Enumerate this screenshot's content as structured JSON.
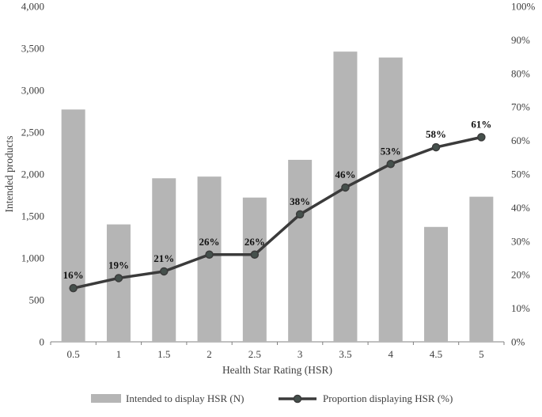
{
  "chart_data": {
    "type": "combo",
    "categories": [
      "0.5",
      "1",
      "1.5",
      "2",
      "2.5",
      "3",
      "3.5",
      "4",
      "4.5",
      "5"
    ],
    "series": [
      {
        "name": "Intended to display HSR (N)",
        "type": "bar",
        "axis": "left",
        "values": [
          2770,
          1400,
          1950,
          1970,
          1720,
          2170,
          3460,
          3390,
          1370,
          1730
        ]
      },
      {
        "name": "Proportion displaying HSR (%)",
        "type": "line",
        "axis": "right",
        "values": [
          16,
          19,
          21,
          26,
          26,
          38,
          46,
          53,
          58,
          61
        ],
        "labels": [
          "16%",
          "19%",
          "21%",
          "26%",
          "26%",
          "38%",
          "46%",
          "53%",
          "58%",
          "61%"
        ]
      }
    ],
    "xlabel": "Health Star Rating (HSR)",
    "ylabel_left": "Intended products",
    "left_axis": {
      "min": 0,
      "max": 4000,
      "step": 500
    },
    "right_axis": {
      "min": 0,
      "max": 100,
      "step": 10,
      "suffix": "%"
    },
    "grid": false,
    "legend_position": "bottom",
    "colors": {
      "bar": "#b5b5b5",
      "line": "#3b3b3b",
      "marker": "#45504c",
      "axis_line": "#808080",
      "text": "#3f3f3f"
    }
  }
}
